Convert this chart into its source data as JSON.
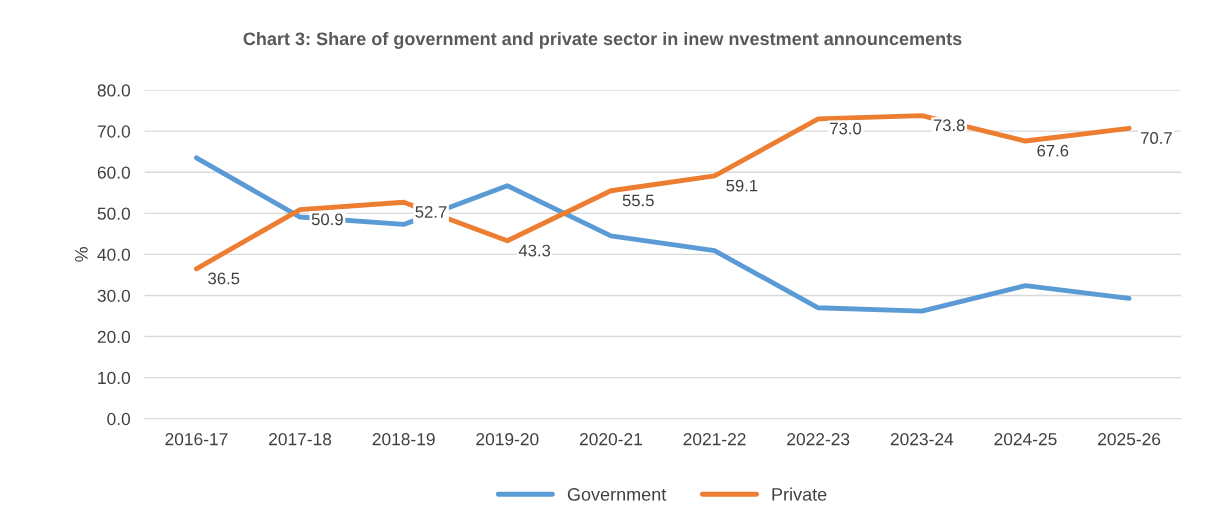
{
  "chart_data": {
    "type": "line",
    "title": "Chart 3: Share of government and private sector in inew nvestment announcements",
    "ylabel": "%",
    "categories": [
      "2016-17",
      "2017-18",
      "2018-19",
      "2019-20",
      "2020-21",
      "2021-22",
      "2022-23",
      "2023-24",
      "2024-25",
      "2025-26"
    ],
    "series": [
      {
        "name": "Government",
        "color": "#5b9bd5",
        "values": [
          63.5,
          49.1,
          47.3,
          56.7,
          44.5,
          40.9,
          27.0,
          26.2,
          32.4,
          29.3
        ]
      },
      {
        "name": "Private",
        "color": "#ed7d31",
        "values": [
          36.5,
          50.9,
          52.7,
          43.3,
          55.5,
          59.1,
          73.0,
          73.8,
          67.6,
          70.7
        ],
        "value_labels": [
          "36.5",
          "50.9",
          "52.7",
          "43.3",
          "55.5",
          "59.1",
          "73.0",
          "73.8",
          "67.6",
          "70.7"
        ]
      }
    ],
    "ylim": [
      0,
      80
    ],
    "yticks": [
      {
        "value": 0,
        "label": "0.0"
      },
      {
        "value": 10,
        "label": "10.0"
      },
      {
        "value": 20,
        "label": "20.0"
      },
      {
        "value": 30,
        "label": "30.0"
      },
      {
        "value": 40,
        "label": "40.0"
      },
      {
        "value": 50,
        "label": "50.0"
      },
      {
        "value": 60,
        "label": "60.0"
      },
      {
        "value": 70,
        "label": "70.0"
      },
      {
        "value": 80,
        "label": "80.0"
      }
    ],
    "grid": "y",
    "legend": "bottom",
    "marker": "none",
    "line_style": "solid"
  }
}
